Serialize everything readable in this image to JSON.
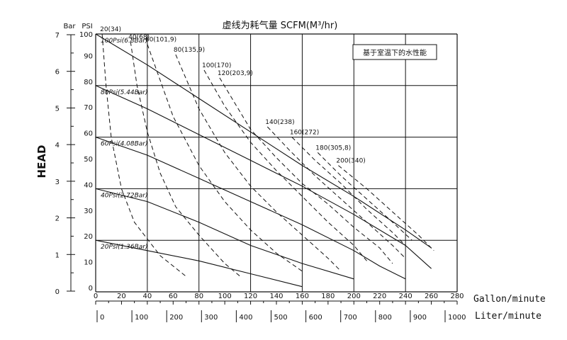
{
  "chart_data": {
    "type": "line",
    "title": "虚线为耗气量 SCFM(M³/hr)",
    "note": "基于室温下的水性能",
    "ylabel": "HEAD",
    "bar_label": "Bar",
    "psi_label": "PSI",
    "xlabel_gpm": "Gallon/minute",
    "xlabel_lpm": "Liter/minute",
    "xlim": [
      0,
      280
    ],
    "ylim": [
      0,
      100
    ],
    "grid": true,
    "x_ticks_gpm": [
      "0",
      "20",
      "40",
      "60",
      "80",
      "100",
      "120",
      "140",
      "160",
      "180",
      "200",
      "220",
      "240",
      "260",
      "280"
    ],
    "x_ticks_lpm": [
      "0",
      "100",
      "200",
      "300",
      "400",
      "500",
      "600",
      "700",
      "800",
      "900",
      "1000"
    ],
    "y_ticks_psi": [
      "0",
      "10",
      "20",
      "30",
      "40",
      "50",
      "60",
      "70",
      "80",
      "90",
      "100"
    ],
    "y_ticks_bar": [
      "0",
      "1",
      "2",
      "3",
      "4",
      "5",
      "6",
      "7"
    ],
    "series": [
      {
        "name": "100Psi(6.8Bar)",
        "x": [
          0,
          40,
          80,
          120,
          160,
          200,
          240,
          260
        ],
        "y": [
          100,
          88,
          75,
          62,
          49,
          37,
          24,
          17
        ]
      },
      {
        "name": "80Psi(5.44Bar)",
        "x": [
          0,
          40,
          80,
          120,
          160,
          200,
          240,
          260
        ],
        "y": [
          80,
          71,
          61,
          51,
          41,
          30,
          18,
          9
        ]
      },
      {
        "name": "60Psi(4.08Bar)",
        "x": [
          0,
          40,
          80,
          120,
          160,
          200,
          220,
          240
        ],
        "y": [
          60,
          53,
          44,
          35,
          26,
          16,
          10,
          5
        ]
      },
      {
        "name": "40Psi(2.72Bar)",
        "x": [
          0,
          40,
          80,
          120,
          160,
          200
        ],
        "y": [
          40,
          35,
          27,
          18,
          11,
          5
        ]
      },
      {
        "name": "20Psi(1.36Bar)",
        "x": [
          0,
          40,
          80,
          120,
          160
        ],
        "y": [
          20,
          16,
          12,
          7,
          2
        ]
      }
    ],
    "air_consumption": [
      {
        "name": "20(34)",
        "x": [
          5,
          8,
          12,
          20,
          30,
          50,
          70
        ],
        "y": [
          100,
          80,
          60,
          40,
          27,
          14,
          6
        ]
      },
      {
        "name": "40(68)",
        "x": [
          27,
          32,
          40,
          50,
          62,
          80,
          100,
          112
        ],
        "y": [
          97,
          80,
          62,
          46,
          33,
          22,
          11,
          6
        ]
      },
      {
        "name": "60(101,9)",
        "x": [
          40,
          60,
          80,
          100,
          120,
          140,
          160
        ],
        "y": [
          96,
          68,
          49,
          35,
          24,
          15,
          8
        ]
      },
      {
        "name": "80(135,9)",
        "x": [
          62,
          80,
          100,
          120,
          140,
          160,
          180,
          190
        ],
        "y": [
          92,
          71,
          54,
          41,
          31,
          22,
          13,
          8
        ]
      },
      {
        "name": "100(170)",
        "x": [
          84,
          100,
          120,
          140,
          160,
          180,
          200,
          210
        ],
        "y": [
          86,
          72,
          58,
          47,
          37,
          27,
          18,
          12
        ]
      },
      {
        "name": "120(203,9)",
        "x": [
          96,
          120,
          140,
          160,
          180,
          200,
          220,
          230
        ],
        "y": [
          83,
          63,
          52,
          42,
          34,
          25,
          17,
          11
        ]
      },
      {
        "name": "140(238)",
        "x": [
          133,
          150,
          170,
          190,
          210,
          230,
          240
        ],
        "y": [
          64,
          55,
          45,
          36,
          27,
          18,
          13
        ]
      },
      {
        "name": "160(272)",
        "x": [
          152,
          170,
          190,
          210,
          230,
          240
        ],
        "y": [
          60,
          51,
          42,
          32,
          23,
          18
        ]
      },
      {
        "name": "180(305,8)",
        "x": [
          172,
          190,
          210,
          230,
          245
        ],
        "y": [
          54,
          45,
          36,
          27,
          20
        ]
      },
      {
        "name": "200(340)",
        "x": [
          188,
          210,
          230,
          250,
          262
        ],
        "y": [
          49,
          40,
          31,
          22,
          16
        ]
      }
    ]
  }
}
